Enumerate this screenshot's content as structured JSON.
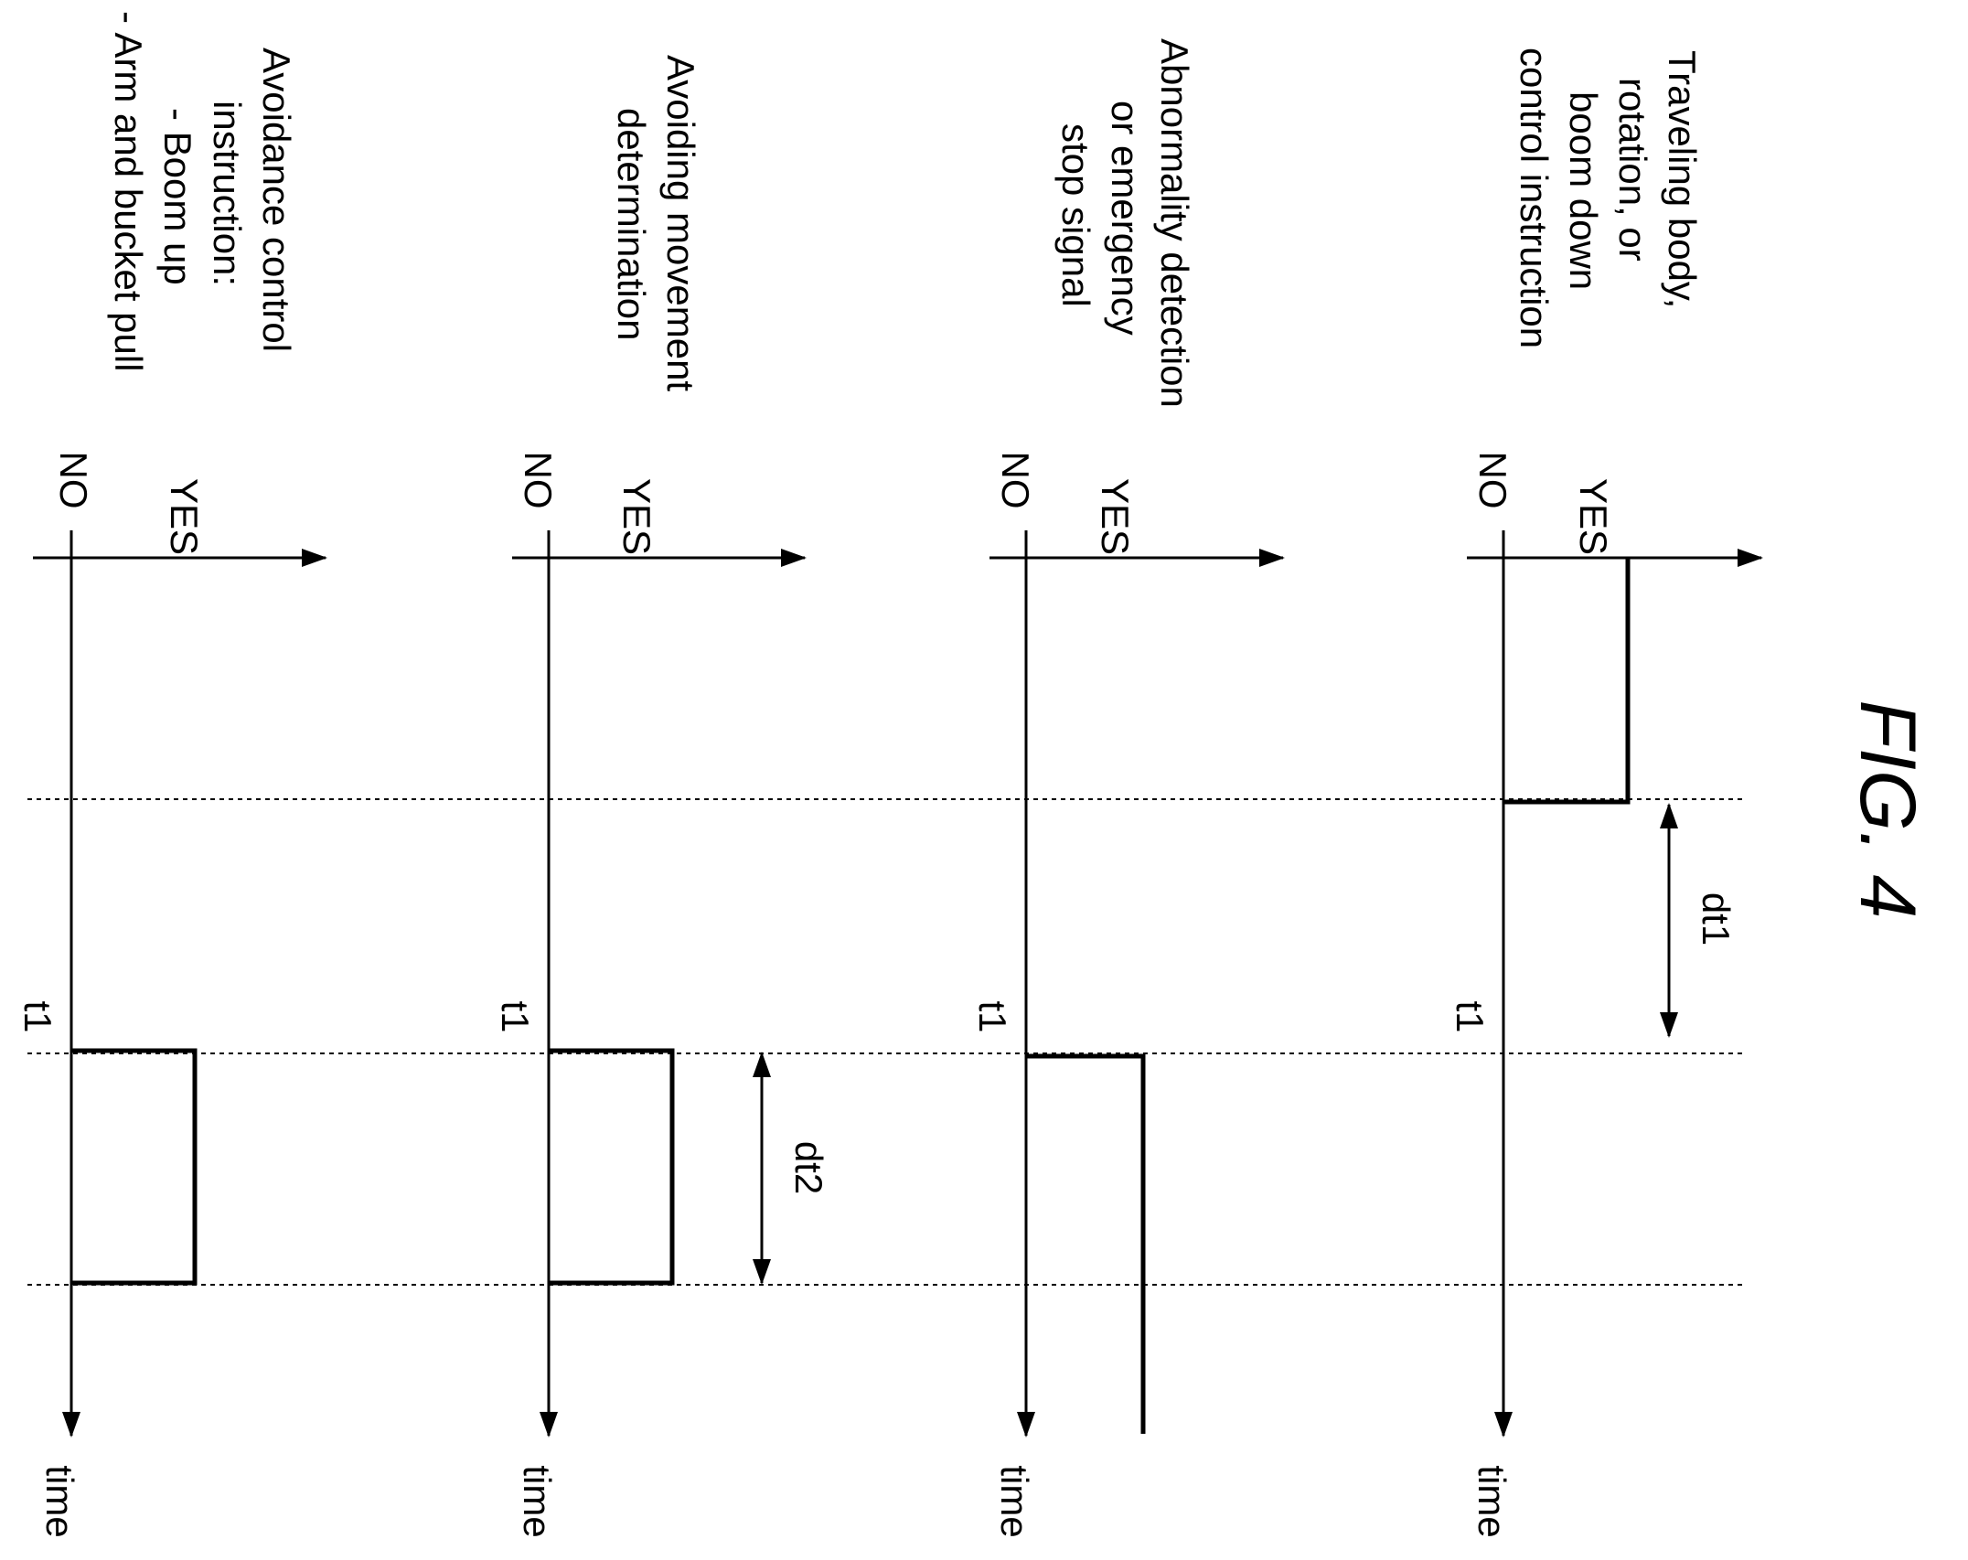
{
  "figure": {
    "title": "FIG. 4"
  },
  "rows": [
    {
      "label_lines": [
        "Traveling body,",
        "rotation, or",
        "boom down",
        "control instruction"
      ],
      "yes": "YES",
      "no": "NO",
      "axis": "time",
      "t1": "t1"
    },
    {
      "label_lines": [
        "Abnormality detection",
        "or emergency",
        "stop signal"
      ],
      "yes": "YES",
      "no": "NO",
      "axis": "time",
      "t1": "t1"
    },
    {
      "label_lines": [
        "Avoiding movement",
        "determination"
      ],
      "yes": "YES",
      "no": "NO",
      "axis": "time",
      "t1": "t1"
    },
    {
      "label_lines": [
        "Avoidance control",
        "instruction:",
        "- Boom up",
        "- Arm and bucket pull"
      ],
      "yes": "YES",
      "no": "NO",
      "axis": "time",
      "t1": "t1"
    }
  ],
  "intervals": {
    "dt1": "dt1",
    "dt2": "dt2"
  }
}
